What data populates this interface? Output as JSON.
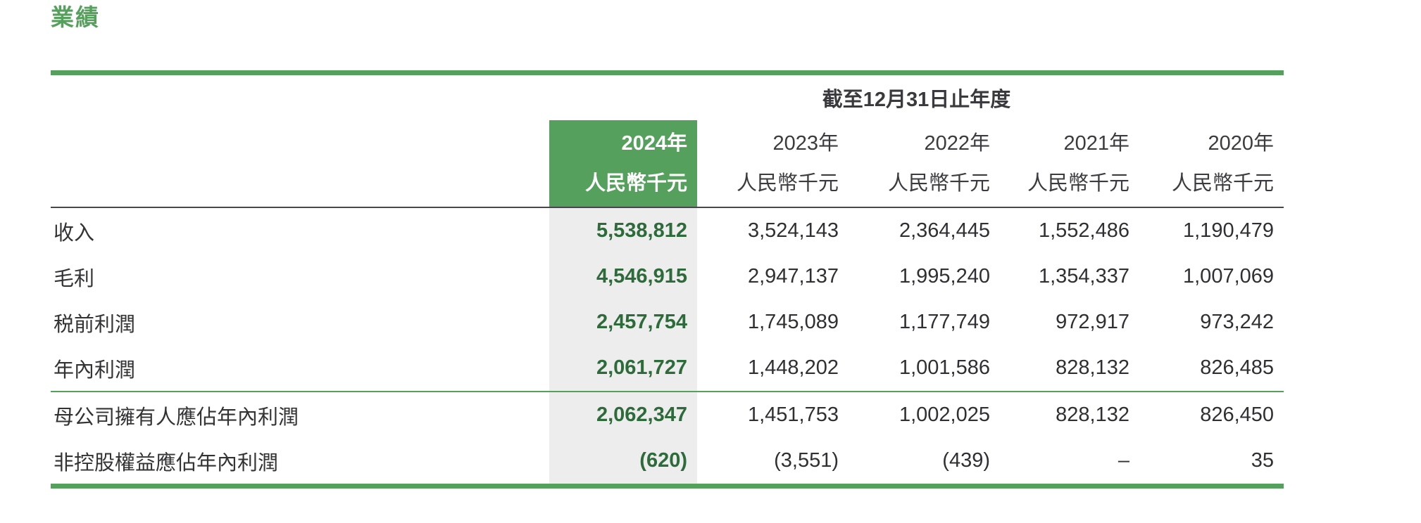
{
  "title": "業績",
  "colors": {
    "accent_green": "#55a05c",
    "highlight_text_green": "#2e6b3a",
    "highlight_column_bg": "#ededed",
    "body_text": "#333336",
    "header_rule_dark": "#47474b"
  },
  "table": {
    "period_header": "截至12月31日止年度",
    "columns": [
      {
        "year": "2024年",
        "unit": "人民幣千元",
        "highlighted": true
      },
      {
        "year": "2023年",
        "unit": "人民幣千元",
        "highlighted": false
      },
      {
        "year": "2022年",
        "unit": "人民幣千元",
        "highlighted": false
      },
      {
        "year": "2021年",
        "unit": "人民幣千元",
        "highlighted": false
      },
      {
        "year": "2020年",
        "unit": "人民幣千元",
        "highlighted": false
      }
    ],
    "rows": [
      {
        "label": "收入",
        "values": [
          "5,538,812",
          "3,524,143",
          "2,364,445",
          "1,552,486",
          "1,190,479"
        ]
      },
      {
        "label": "毛利",
        "values": [
          "4,546,915",
          "2,947,137",
          "1,995,240",
          "1,354,337",
          "1,007,069"
        ]
      },
      {
        "label": "税前利潤",
        "values": [
          "2,457,754",
          "1,745,089",
          "1,177,749",
          "972,917",
          "973,242"
        ]
      },
      {
        "label": "年內利潤",
        "values": [
          "2,061,727",
          "1,448,202",
          "1,001,586",
          "828,132",
          "826,485"
        ]
      },
      {
        "label": "母公司擁有人應佔年內利潤",
        "values": [
          "2,062,347",
          "1,451,753",
          "1,002,025",
          "828,132",
          "826,450"
        ]
      },
      {
        "label": "非控股權益應佔年內利潤",
        "values": [
          "(620)",
          "(3,551)",
          "(439)",
          "–",
          "35"
        ]
      }
    ]
  }
}
